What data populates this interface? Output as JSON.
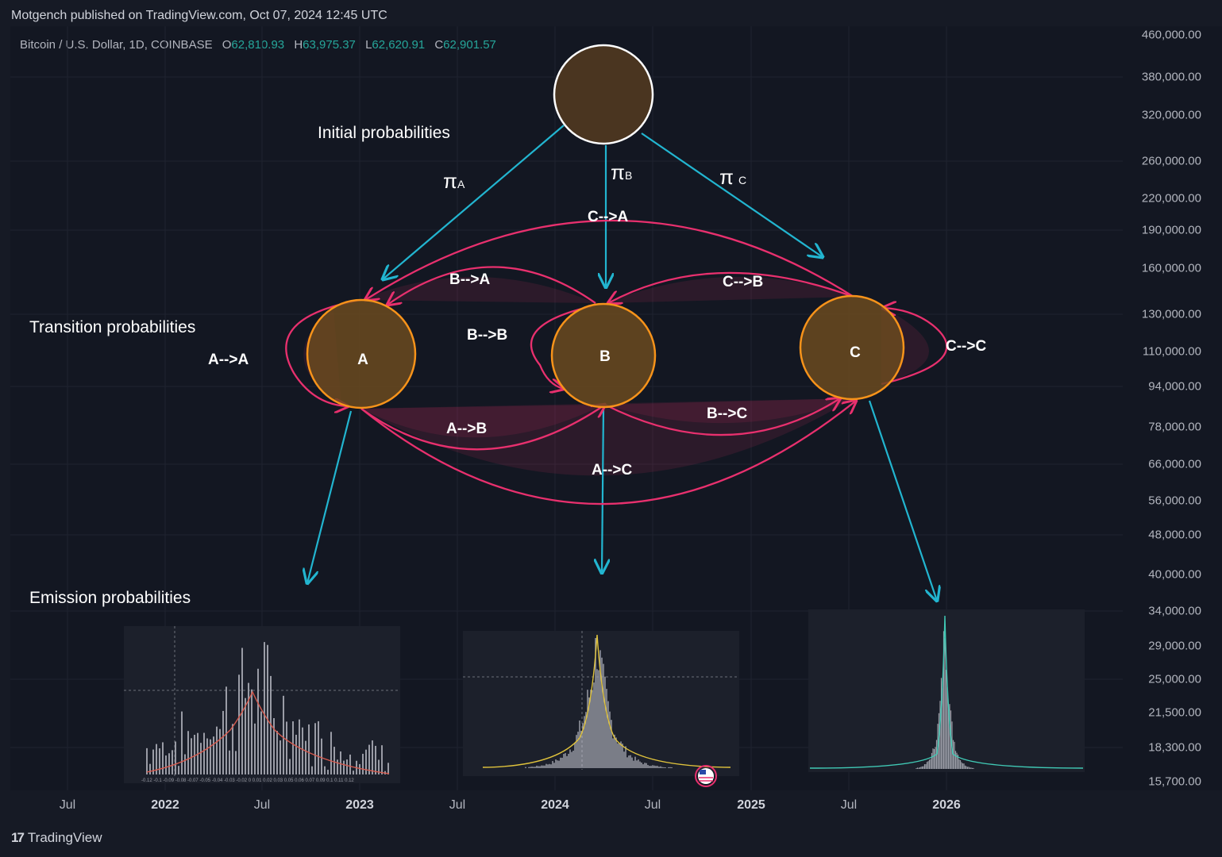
{
  "header": {
    "publisher_line": "Motgench published on TradingView.com, Oct 07, 2024 12:45 UTC"
  },
  "legend": {
    "symbol": "Bitcoin / U.S. Dollar, 1D, COINBASE",
    "open_key": "O",
    "open": "62,810.93",
    "high_key": "H",
    "high": "63,975.37",
    "low_key": "L",
    "low": "62,620.91",
    "close_key": "C",
    "close": "62,901.57"
  },
  "price_axis": [
    "460,000.00",
    "380,000.00",
    "320,000.00",
    "260,000.00",
    "220,000.00",
    "190,000.00",
    "160,000.00",
    "130,000.00",
    "110,000.00",
    "94,000.00",
    "78,000.00",
    "66,000.00",
    "56,000.00",
    "48,000.00",
    "40,000.00",
    "34,000.00",
    "29,000.00",
    "25,000.00",
    "21,500.00",
    "18,300.00",
    "15,700.00"
  ],
  "time_axis": [
    {
      "label": "Jul",
      "year": false
    },
    {
      "label": "2022",
      "year": true
    },
    {
      "label": "Jul",
      "year": false
    },
    {
      "label": "2023",
      "year": true
    },
    {
      "label": "Jul",
      "year": false
    },
    {
      "label": "2024",
      "year": true
    },
    {
      "label": "Jul",
      "year": false
    },
    {
      "label": "2025",
      "year": true
    },
    {
      "label": "Jul",
      "year": false
    },
    {
      "label": "2026",
      "year": true
    }
  ],
  "diagram": {
    "initial_probabilities": "Initial probabilities",
    "transition_probabilities": "Transition probabilities",
    "emission_probabilities": "Emission probabilities",
    "pi_a": "π",
    "pi_a_sub": "A",
    "pi_b": "π",
    "pi_b_sub": "B",
    "pi_c": "π",
    "pi_c_sub": "C",
    "state_a": "A",
    "state_b": "B",
    "state_c": "C",
    "t_aa": "A-->A",
    "t_ab": "A-->B",
    "t_ac": "A-->C",
    "t_ba": "B-->A",
    "t_bb": "B-->B",
    "t_bc": "B-->C",
    "t_ca": "C-->A",
    "t_cb": "C-->B",
    "t_cc": "C-->C"
  },
  "emission_a_ticks": "-0.12 -0.1 -0.09 -0.08 -0.07 -0.05 -0.04 -0.03 -0.02  0  0.01 0.02 0.03 0.05 0.06 0.07 0.09  0.1  0.11 0.12",
  "brand": {
    "logo": "17",
    "name": "TradingView"
  },
  "colors": {
    "background": "#161a25",
    "cyan_arrow": "#22b5d0",
    "transition": "#e8306e",
    "state_fill": "#6b4a1f",
    "state_stroke": "#f7931a",
    "initial_stroke": "#ffffff",
    "legend_values": "#26a69a"
  }
}
